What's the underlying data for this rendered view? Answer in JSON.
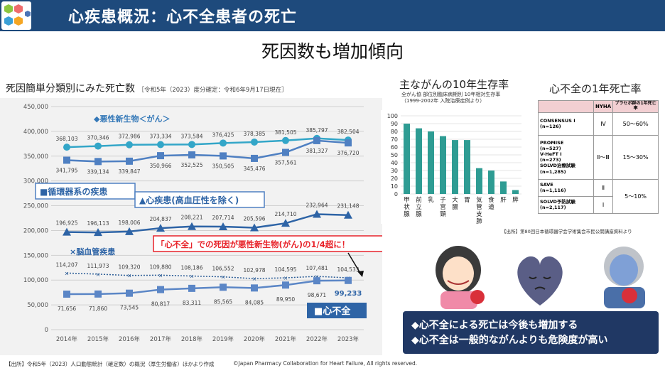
{
  "header": {
    "title": "心疾患概況：心不全患者の死亡",
    "subtitle": "死因数も増加傾向"
  },
  "colors": {
    "header_bg": "#1e4a7c",
    "cancer_series": "#33a6c8",
    "circulatory_series": "#4f80c2",
    "heart_series": "#2e64a6",
    "stroke_series": "#2b5c96",
    "hf_series": "#5b86c6",
    "bar_color": "#2e9c93",
    "callout_red": "#e8232a"
  },
  "main_chart": {
    "title": "死因簡単分類別にみた死亡数",
    "note": "［令和5年（2023）度分確定：令和6年9月17日現在］",
    "label_cancer": "◆悪性新生物＜がん＞",
    "label_circulatory": "■循環器系の疾患",
    "label_heart": "▲心疾患(高血圧性を除く)",
    "label_stroke": "×脳血管疾患",
    "label_hf": "■心不全",
    "callout": "「心不全」での死因が悪性新生物(がん)の1/4超に！"
  },
  "chart_data": [
    {
      "type": "line",
      "x": [
        "2014年",
        "2015年",
        "2016年",
        "2017年",
        "2018年",
        "2019年",
        "2020年",
        "2021年",
        "2022年",
        "2023年"
      ],
      "ylim": [
        0,
        450000
      ],
      "yticks": [
        "0",
        "50,000",
        "100,000",
        "150,000",
        "200,000",
        "250,000",
        "300,000",
        "350,000",
        "400,000",
        "450,000"
      ],
      "grid": true,
      "series": [
        {
          "name": "悪性新生物＜がん＞",
          "values": [
            368103,
            370346,
            372986,
            373334,
            373584,
            376425,
            378385,
            381505,
            385797,
            382504
          ],
          "labels": [
            "368,103",
            "370,346",
            "372,986",
            "373,334",
            "373,584",
            "376,425",
            "378,385",
            "381,505",
            "385,797",
            "382,504"
          ]
        },
        {
          "name": "循環器系の疾患",
          "values": [
            341795,
            339134,
            339847,
            350966,
            352525,
            350505,
            345476,
            357561,
            381327,
            376720
          ],
          "labels": [
            "341,795",
            "339,134",
            "339,847",
            "350,966",
            "352,525",
            "350,505",
            "345,476",
            "357,561",
            "381,327",
            "376,720"
          ]
        },
        {
          "name": "心疾患(高血圧性を除く)",
          "values": [
            196925,
            196113,
            198006,
            204837,
            208221,
            207714,
            205596,
            214710,
            232964,
            231148
          ],
          "labels": [
            "196,925",
            "196,113",
            "198,006",
            "204,837",
            "208,221",
            "207,714",
            "205,596",
            "214,710",
            "232,964",
            "231,148"
          ]
        },
        {
          "name": "脳血管疾患",
          "values": [
            114207,
            111973,
            109320,
            109880,
            108186,
            106552,
            102978,
            104595,
            107481,
            104533
          ],
          "labels": [
            "114,207",
            "111,973",
            "109,320",
            "109,880",
            "108,186",
            "106,552",
            "102,978",
            "104,595",
            "107,481",
            "104,533"
          ]
        },
        {
          "name": "心不全",
          "values": [
            71656,
            71860,
            73545,
            80817,
            83311,
            85565,
            84085,
            89950,
            98671,
            99233
          ],
          "labels": [
            "71,656",
            "71,860",
            "73,545",
            "80,817",
            "83,311",
            "85,565",
            "84,085",
            "89,950",
            "98,671",
            "99,233"
          ]
        }
      ]
    },
    {
      "type": "bar",
      "title": "主ながんの10年生存率",
      "subtitle_lines": [
        "全がん協 部位別臨床病期別 10年相対生存率",
        "（1999-2002年 入院治療症例より）"
      ],
      "categories": [
        "甲状腺",
        "前立腺",
        "乳",
        "子宮頸",
        "大腸",
        "胃",
        "気管支肺",
        "食道",
        "肝",
        "膵"
      ],
      "values": [
        90,
        84,
        80,
        74,
        69,
        69,
        33,
        30,
        16,
        5
      ],
      "ylim": [
        0,
        100
      ],
      "yticks": [
        "0",
        "10",
        "20",
        "30",
        "40",
        "50",
        "60",
        "70",
        "80",
        "90",
        "100"
      ]
    }
  ],
  "hf_table": {
    "title": "心不全の1年死亡率",
    "headers": [
      "",
      "NYHA",
      "プラセボ群の1年死亡率"
    ],
    "rows": [
      {
        "trial": "CONSENSUS Ⅰ",
        "n": "(n=126)",
        "nyha": "Ⅳ",
        "rate": "50〜60%"
      },
      {
        "trial": "PROMISE\n(n=527)\nV-HeFT Ⅰ\n(n=273)\nSOLVD治療試験\n(n=1,285)",
        "nyha": "Ⅱ〜Ⅲ",
        "rate": "15〜30%"
      },
      {
        "trial": "SAVE",
        "n": "(n=1,116)",
        "nyha": "Ⅱ"
      },
      {
        "trial": "SOLVD予防試験",
        "n": "(n=2,117)",
        "nyha": "Ⅰ"
      }
    ],
    "merged_rate": "5〜10%"
  },
  "source_note": "【出所】第80回日本循環器学会学術集会市民公開講座資料より",
  "conclusions": [
    "◆心不全による死亡は今後も増加する",
    "◆心不全は一般的ながんよりも危険度が高い"
  ],
  "footer": {
    "left": "【出所】令和5年（2023）人口動態統計（確定数）の概況（厚生労働省）ほかより作成",
    "center": "©Japan Pharmacy Collaboration for Heart Failure, All rights reserved."
  }
}
